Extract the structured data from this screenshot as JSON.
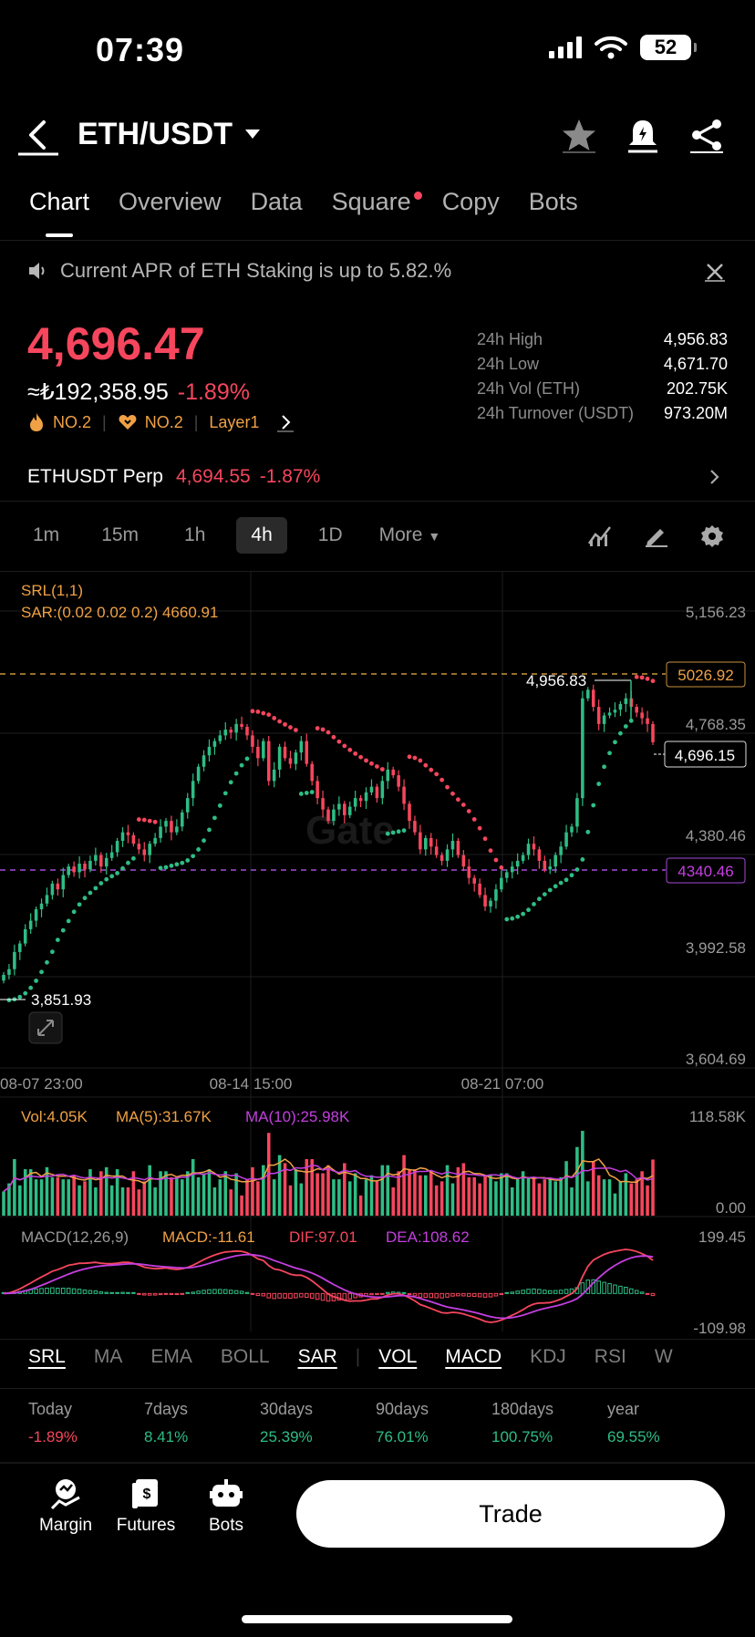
{
  "status_bar": {
    "time": "07:39",
    "battery": "52"
  },
  "header": {
    "title": "ETH/USDT"
  },
  "tabs": [
    {
      "label": "Chart",
      "active": true
    },
    {
      "label": "Overview"
    },
    {
      "label": "Data"
    },
    {
      "label": "Square",
      "badge": true
    },
    {
      "label": "Copy"
    },
    {
      "label": "Bots"
    }
  ],
  "notice": {
    "text": "Current APR of ETH Staking is up to 5.82.%"
  },
  "ticker": {
    "price": "4,696.47",
    "fiat": "≈₺192,358.95",
    "change": "-1.89%",
    "badge1": "NO.2",
    "badge2": "NO.2",
    "badge3": "Layer1"
  },
  "stats": [
    {
      "label": "24h High",
      "value": "4,956.83"
    },
    {
      "label": "24h Low",
      "value": "4,671.70"
    },
    {
      "label": "24h Vol (ETH)",
      "value": "202.75K"
    },
    {
      "label": "24h Turnover (USDT)",
      "value": "973.20M"
    }
  ],
  "perp": {
    "name": "ETHUSDT Perp",
    "price": "4,694.55",
    "change": "-1.87%"
  },
  "timeframes": [
    "1m",
    "15m",
    "1h",
    "4h",
    "1D",
    "More"
  ],
  "timeframe_active": "4h",
  "main_chart": {
    "indicator_line1": "SRL(1,1)",
    "indicator_line2": "SAR:(0.02 0.02 0.2) 4660.91",
    "y_labels": [
      "5,156.23",
      "4,768.35",
      "4,380.46",
      "3,992.58",
      "3,604.69"
    ],
    "x_labels": [
      "08-07 23:00",
      "08-14 15:00",
      "08-21 07:00"
    ],
    "high_marker": "4,956.83",
    "low_marker": "3,851.93",
    "current_price_tag": "4,696.15",
    "line_tag_upper": "5026.92",
    "line_tag_lower": "4340.46"
  },
  "volume_panel": {
    "vol": "Vol:4.05K",
    "ma5": "MA(5):31.67K",
    "ma10": "MA(10):25.98K",
    "y_top": "118.58K",
    "y_bottom": "0.00"
  },
  "macd_panel": {
    "title": "MACD(12,26,9)",
    "macd": "MACD:-11.61",
    "dif": "DIF:97.01",
    "dea": "DEA:108.62",
    "y_top": "199.45",
    "y_bottom": "-109.98"
  },
  "indicator_tabs": [
    {
      "label": "SRL",
      "on": true
    },
    {
      "label": "MA"
    },
    {
      "label": "EMA"
    },
    {
      "label": "BOLL"
    },
    {
      "label": "SAR",
      "on": true
    },
    {
      "label": "VOL",
      "on": true
    },
    {
      "label": "MACD",
      "on": true
    },
    {
      "label": "KDJ"
    },
    {
      "label": "RSI"
    },
    {
      "label": "W"
    }
  ],
  "performance": [
    {
      "label": "Today",
      "value": "-1.89%"
    },
    {
      "label": "7days",
      "value": "8.41%"
    },
    {
      "label": "30days",
      "value": "25.39%"
    },
    {
      "label": "90days",
      "value": "76.01%"
    },
    {
      "label": "180days",
      "value": "100.75%"
    },
    {
      "label": "year",
      "value": "69.55%"
    }
  ],
  "bottom_nav": [
    {
      "label": "Margin"
    },
    {
      "label": "Futures"
    },
    {
      "label": "Bots"
    }
  ],
  "trade_button": "Trade",
  "colors": {
    "up": "#2ebd85",
    "down": "#f6465d",
    "accent_orange": "#f0a145",
    "purple": "#c43fe0"
  },
  "chart_data": {
    "type": "candlestick",
    "title": "",
    "ylim": [
      3604.69,
      5156.23
    ],
    "close_series": [
      3880,
      3900,
      3960,
      3990,
      4040,
      4070,
      4110,
      4130,
      4160,
      4200,
      4180,
      4230,
      4260,
      4240,
      4270,
      4250,
      4280,
      4300,
      4260,
      4290,
      4310,
      4350,
      4380,
      4370,
      4340,
      4320,
      4300,
      4340,
      4360,
      4400,
      4420,
      4380,
      4400,
      4450,
      4500,
      4560,
      4610,
      4650,
      4680,
      4700,
      4720,
      4740,
      4730,
      4760,
      4750,
      4720,
      4680,
      4640,
      4700,
      4560,
      4600,
      4680,
      4640,
      4620,
      4660,
      4700,
      4620,
      4560,
      4500,
      4460,
      4420,
      4460,
      4480,
      4440,
      4470,
      4500,
      4490,
      4520,
      4540,
      4500,
      4560,
      4600,
      4580,
      4540,
      4480,
      4420,
      4380,
      4320,
      4360,
      4330,
      4300,
      4280,
      4320,
      4350,
      4300,
      4260,
      4220,
      4200,
      4160,
      4120,
      4140,
      4180,
      4220,
      4240,
      4260,
      4280,
      4300,
      4340,
      4320,
      4280,
      4250,
      4260,
      4300,
      4330,
      4380,
      4400,
      4500,
      4850,
      4880,
      4820,
      4760,
      4790,
      4800,
      4810,
      4830,
      4850,
      4820,
      4800,
      4780,
      4760,
      4696
    ],
    "sar_current": 4660.91,
    "high_marker": 4956.83,
    "low_marker": 3851.93
  }
}
